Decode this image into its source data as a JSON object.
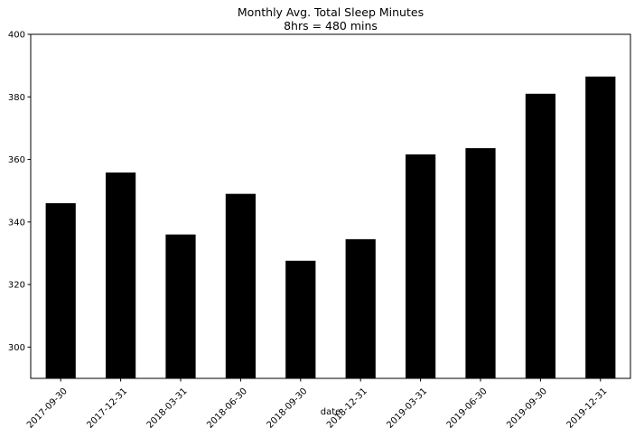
{
  "chart_data": {
    "type": "bar",
    "title": "Monthly Avg. Total Sleep Minutes",
    "subtitle": "8hrs = 480 mins",
    "xlabel": "date",
    "ylabel": "",
    "categories": [
      "2017-09-30",
      "2017-12-31",
      "2018-03-31",
      "2018-06-30",
      "2018-09-30",
      "2018-12-31",
      "2019-03-31",
      "2019-06-30",
      "2019-09-30",
      "2019-12-31"
    ],
    "values": [
      346,
      355.8,
      336,
      349,
      327.6,
      334.5,
      361.6,
      363.6,
      381,
      386.5
    ],
    "ylim": [
      290,
      400
    ],
    "yticks": [
      300,
      320,
      340,
      360,
      380,
      400
    ],
    "grid": false,
    "bar_color": "#000000"
  }
}
